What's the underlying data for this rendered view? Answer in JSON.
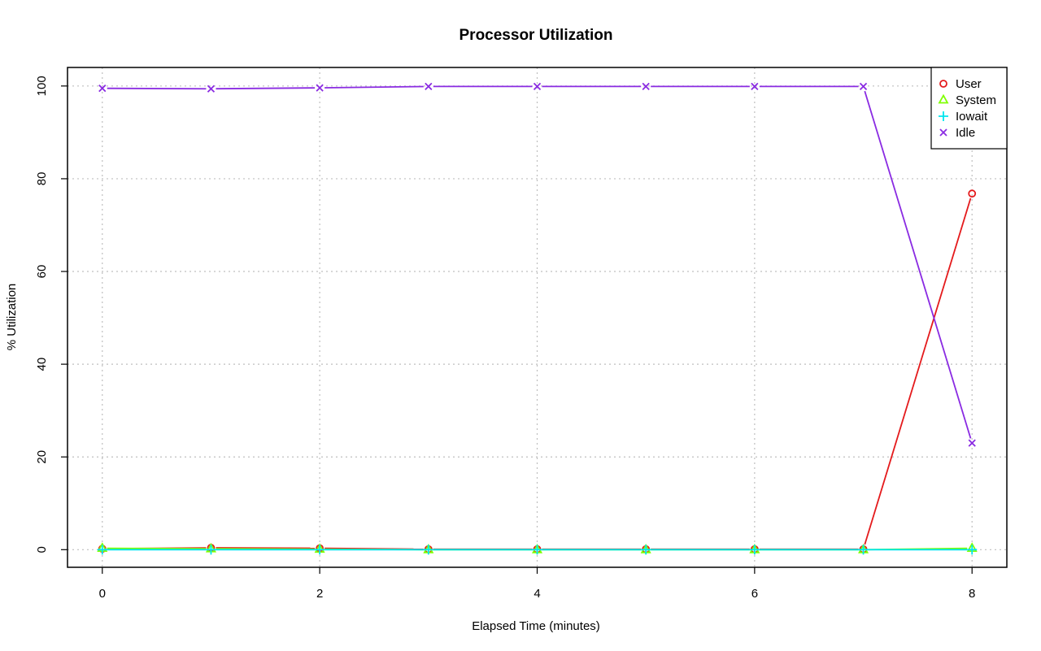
{
  "chart_data": {
    "type": "line",
    "title": "Processor Utilization",
    "xlabel": "Elapsed Time (minutes)",
    "ylabel": "% Utilization",
    "x": [
      0,
      1,
      2,
      3,
      4,
      5,
      6,
      7,
      8
    ],
    "xlim": [
      -0.32,
      8.32
    ],
    "ylim": [
      -3.8,
      104
    ],
    "xticks": [
      0,
      2,
      4,
      6,
      8
    ],
    "yticks": [
      0,
      20,
      40,
      60,
      80,
      100
    ],
    "grid": true,
    "legend_position": "top-right",
    "series": [
      {
        "name": "User",
        "color": "#e41a1c",
        "marker": "circle",
        "values": [
          0.2,
          0.4,
          0.3,
          0.1,
          0.1,
          0.1,
          0.1,
          0.1,
          76.8
        ]
      },
      {
        "name": "System",
        "color": "#7fff00",
        "marker": "triangle",
        "values": [
          0.3,
          0.2,
          0.1,
          0.0,
          0.0,
          0.0,
          0.0,
          0.0,
          0.3
        ]
      },
      {
        "name": "Iowait",
        "color": "#00e5ee",
        "marker": "plus",
        "values": [
          0.0,
          0.0,
          0.0,
          0.0,
          0.0,
          0.0,
          0.0,
          0.0,
          0.0
        ]
      },
      {
        "name": "Idle",
        "color": "#8a2be2",
        "marker": "cross",
        "values": [
          99.5,
          99.4,
          99.6,
          99.9,
          99.9,
          99.9,
          99.9,
          99.9,
          23.0
        ]
      }
    ]
  }
}
